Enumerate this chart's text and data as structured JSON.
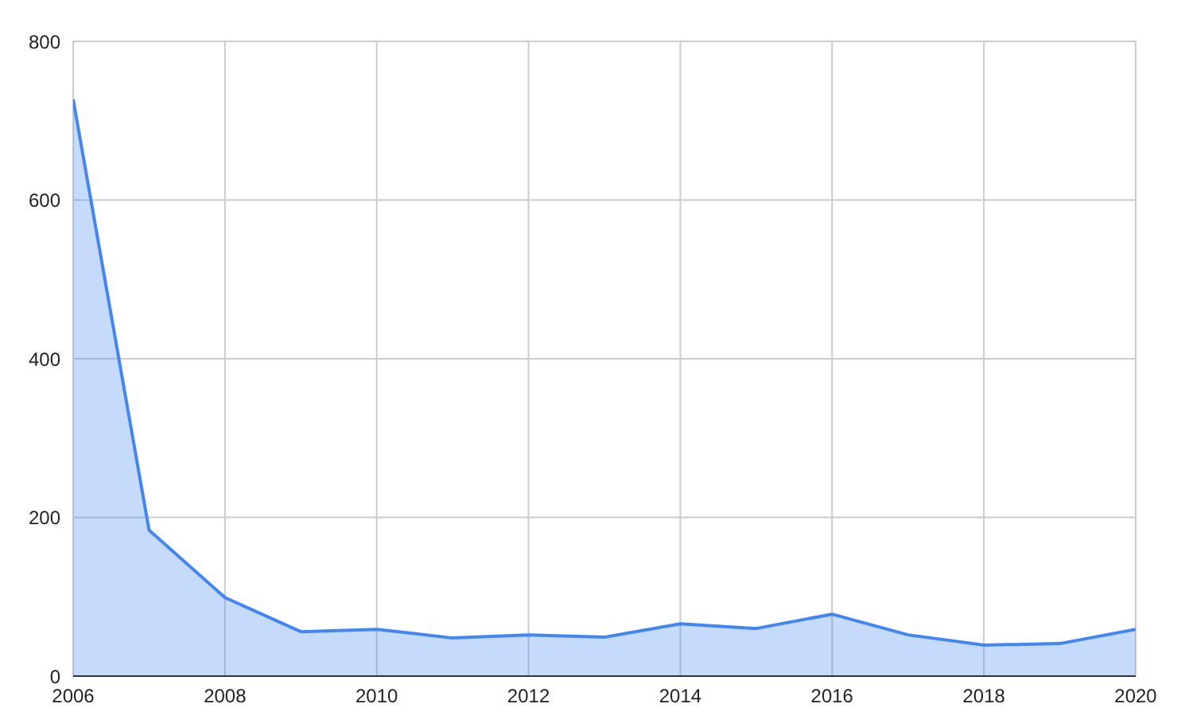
{
  "chart_data": {
    "type": "area",
    "x": [
      2006,
      2007,
      2008,
      2009,
      2010,
      2011,
      2012,
      2013,
      2014,
      2015,
      2016,
      2017,
      2018,
      2019,
      2020
    ],
    "series": [
      {
        "color": "#4285f4",
        "values": [
          727,
          184,
          99,
          56,
          59,
          48,
          52,
          49,
          66,
          60,
          78,
          52,
          39,
          41,
          59
        ]
      }
    ],
    "xlim": [
      2006,
      2020
    ],
    "xticks": [
      2006,
      2008,
      2010,
      2012,
      2014,
      2016,
      2018,
      2020
    ],
    "ylim": [
      0,
      800
    ],
    "yticks": [
      0,
      200,
      400,
      600,
      800
    ],
    "grid": true,
    "legend": false
  }
}
